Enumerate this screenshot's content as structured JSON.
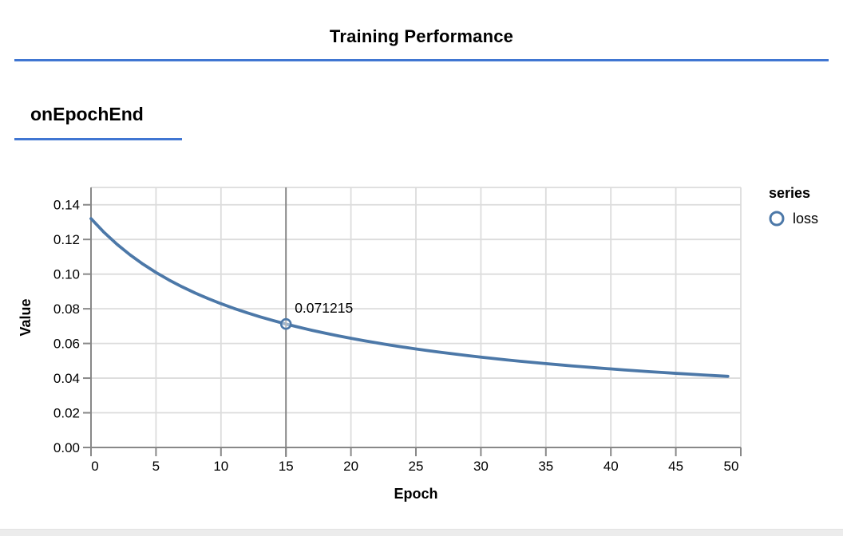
{
  "page": {
    "title": "Training Performance",
    "section_title": "onEpochEnd"
  },
  "colors": {
    "accent_rule": "#4076d2",
    "series_loss": "#4c78a8",
    "gridline": "#dcdcdc",
    "axis": "#888888",
    "crosshair": "#7f7f7f"
  },
  "legend": {
    "title": "series",
    "items": [
      {
        "label": "loss",
        "symbol": "circle-outline",
        "color": "#4c78a8"
      }
    ]
  },
  "hover": {
    "epoch": 15,
    "value": 0.071215,
    "value_label": "0.071215"
  },
  "chart_data": {
    "type": "line",
    "title": "",
    "xlabel": "Epoch",
    "ylabel": "Value",
    "xlim": [
      0,
      50
    ],
    "ylim": [
      0,
      0.15
    ],
    "x_ticks": [
      0,
      5,
      10,
      15,
      20,
      25,
      30,
      35,
      40,
      45,
      50
    ],
    "y_ticks": [
      0.0,
      0.02,
      0.04,
      0.06,
      0.08,
      0.1,
      0.12,
      0.14
    ],
    "grid": true,
    "legend_position": "right",
    "series": [
      {
        "name": "loss",
        "color": "#4c78a8",
        "x": [
          0,
          1,
          2,
          3,
          4,
          5,
          6,
          7,
          8,
          9,
          10,
          11,
          12,
          13,
          14,
          15,
          16,
          17,
          18,
          19,
          20,
          21,
          22,
          23,
          24,
          25,
          26,
          27,
          28,
          29,
          30,
          31,
          32,
          33,
          34,
          35,
          36,
          37,
          38,
          39,
          40,
          41,
          42,
          43,
          44,
          45,
          46,
          47,
          48,
          49
        ],
        "y": [
          0.132009,
          0.12411,
          0.117214,
          0.111142,
          0.105754,
          0.10094,
          0.096614,
          0.092705,
          0.089155,
          0.085918,
          0.082953,
          0.080227,
          0.077714,
          0.075388,
          0.07323,
          0.071215,
          0.069349,
          0.067598,
          0.065957,
          0.064416,
          0.062967,
          0.061601,
          0.060311,
          0.059092,
          0.057937,
          0.056842,
          0.055802,
          0.054813,
          0.053871,
          0.052974,
          0.052117,
          0.051299,
          0.050516,
          0.049767,
          0.04905,
          0.048362,
          0.047701,
          0.047067,
          0.046457,
          0.04587,
          0.045305,
          0.04476,
          0.044235,
          0.043729,
          0.04324,
          0.042768,
          0.042312,
          0.04187,
          0.041443,
          0.04103
        ]
      }
    ]
  }
}
